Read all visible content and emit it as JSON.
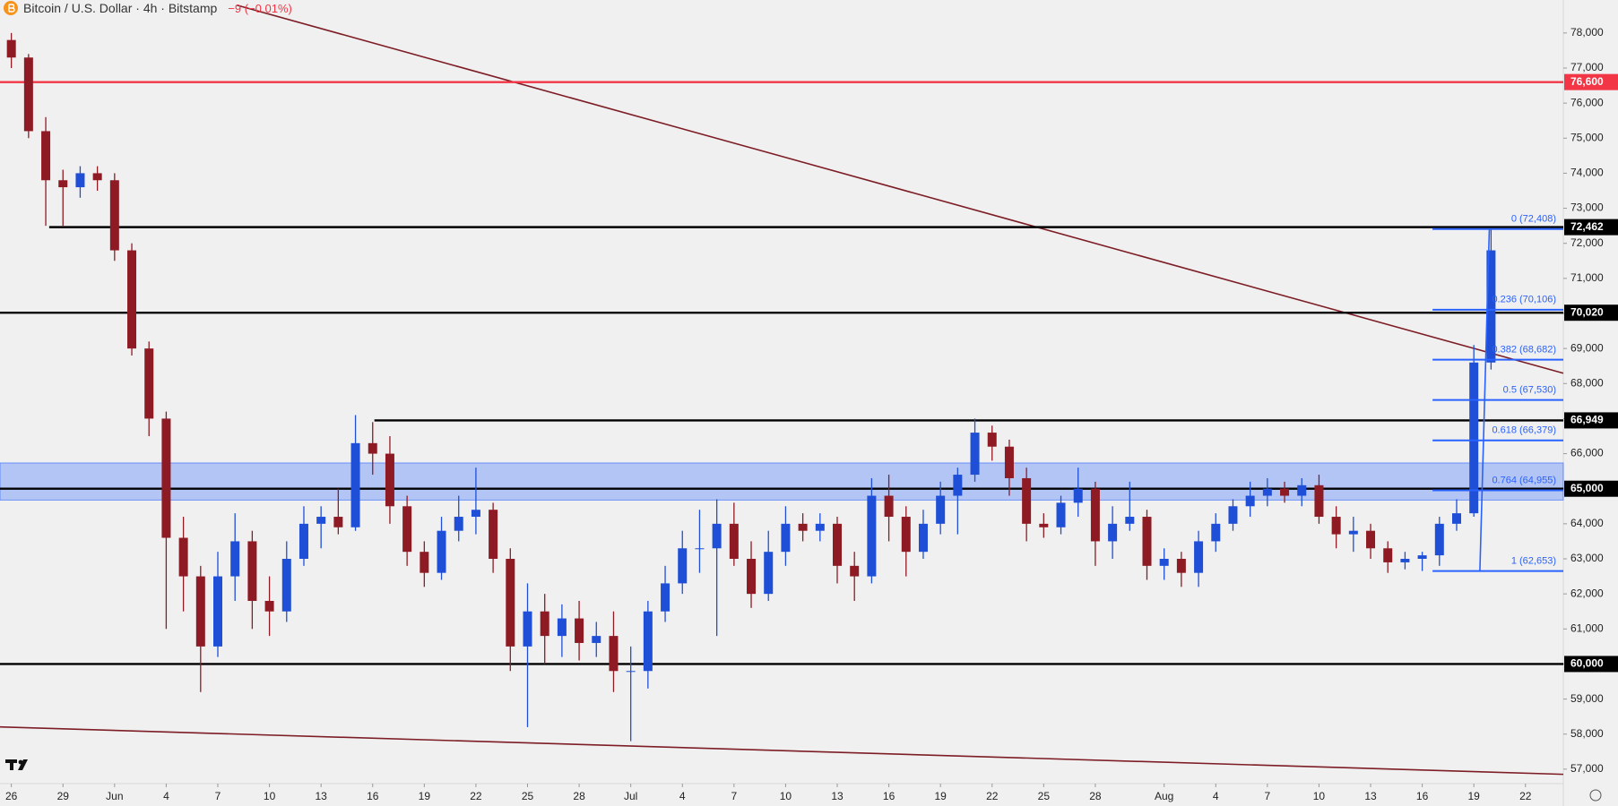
{
  "chart_data": {
    "type": "candlestick",
    "title": "Bitcoin / U.S. Dollar · 4h · Bitstamp",
    "change": "−9 (−0.01%)",
    "up_color": "#1f4fd6",
    "down_color": "#8e1b24",
    "xlim": [
      -0.66,
      90.2
    ],
    "ylim": [
      56588,
      78941
    ],
    "xticks": [
      {
        "value": 0,
        "label": "26"
      },
      {
        "value": 3,
        "label": "29"
      },
      {
        "value": 6,
        "label": "Jun"
      },
      {
        "value": 9,
        "label": "4"
      },
      {
        "value": 12,
        "label": "7"
      },
      {
        "value": 15,
        "label": "10"
      },
      {
        "value": 18,
        "label": "13"
      },
      {
        "value": 21,
        "label": "16"
      },
      {
        "value": 24,
        "label": "19"
      },
      {
        "value": 27,
        "label": "22"
      },
      {
        "value": 30,
        "label": "25"
      },
      {
        "value": 33,
        "label": "28"
      },
      {
        "value": 36,
        "label": "Jul"
      },
      {
        "value": 39,
        "label": "4"
      },
      {
        "value": 42,
        "label": "7"
      },
      {
        "value": 45,
        "label": "10"
      },
      {
        "value": 48,
        "label": "13"
      },
      {
        "value": 51,
        "label": "16"
      },
      {
        "value": 54,
        "label": "19"
      },
      {
        "value": 57,
        "label": "22"
      },
      {
        "value": 60,
        "label": "25"
      },
      {
        "value": 63,
        "label": "28"
      },
      {
        "value": 67,
        "label": "Aug"
      },
      {
        "value": 70,
        "label": "4"
      },
      {
        "value": 73,
        "label": "7"
      },
      {
        "value": 76,
        "label": "10"
      },
      {
        "value": 79,
        "label": "13"
      },
      {
        "value": 82,
        "label": "16"
      },
      {
        "value": 85,
        "label": "19"
      },
      {
        "value": 88,
        "label": "22"
      }
    ],
    "yticks": [
      {
        "value": 57000,
        "label": "57,000"
      },
      {
        "value": 58000,
        "label": "58,000"
      },
      {
        "value": 59000,
        "label": "59,000"
      },
      {
        "value": 60000,
        "label": "60,000"
      },
      {
        "value": 61000,
        "label": "61,000"
      },
      {
        "value": 62000,
        "label": "62,000"
      },
      {
        "value": 63000,
        "label": "63,000"
      },
      {
        "value": 64000,
        "label": "64,000"
      },
      {
        "value": 65000,
        "label": "65,000"
      },
      {
        "value": 66000,
        "label": "66,000"
      },
      {
        "value": 67000,
        "label": "67,000"
      },
      {
        "value": 68000,
        "label": "68,000"
      },
      {
        "value": 69000,
        "label": "69,000"
      },
      {
        "value": 70000,
        "label": "70,000"
      },
      {
        "value": 71000,
        "label": "71,000"
      },
      {
        "value": 72000,
        "label": "72,000"
      },
      {
        "value": 73000,
        "label": "73,000"
      },
      {
        "value": 74000,
        "label": "74,000"
      },
      {
        "value": 75000,
        "label": "75,000"
      },
      {
        "value": 76000,
        "label": "76,000"
      },
      {
        "value": 77000,
        "label": "77,000"
      },
      {
        "value": 78000,
        "label": "78,000"
      }
    ],
    "x": [
      0,
      1,
      2,
      3,
      4,
      5,
      6,
      7,
      8,
      9,
      10,
      11,
      12,
      13,
      14,
      15,
      16,
      17,
      18,
      19,
      20,
      21,
      22,
      23,
      24,
      25,
      26,
      27,
      28,
      29,
      30,
      31,
      32,
      33,
      34,
      35,
      36,
      37,
      38,
      39,
      40,
      41,
      42,
      43,
      44,
      45,
      46,
      47,
      48,
      49,
      50,
      51,
      52,
      53,
      54,
      55,
      56,
      57,
      58,
      59,
      60,
      61,
      62,
      63,
      64,
      65,
      66,
      67,
      68,
      69,
      70,
      71,
      72,
      73,
      74,
      75,
      76,
      77,
      78,
      79,
      80,
      81,
      82,
      83,
      84,
      85,
      86
    ],
    "open": [
      77800,
      77300,
      75200,
      73800,
      73600,
      74000,
      73800,
      71800,
      69000,
      67000,
      63600,
      62500,
      60500,
      62500,
      63500,
      61800,
      61500,
      63000,
      64000,
      64200,
      63900,
      66300,
      66000,
      64500,
      63200,
      62600,
      63800,
      64200,
      64400,
      63000,
      60500,
      61500,
      60800,
      61300,
      60600,
      60800,
      59800,
      59800,
      61500,
      62300,
      63300,
      63300,
      64000,
      63000,
      62000,
      63200,
      64000,
      63800,
      64000,
      62800,
      62500,
      64800,
      64200,
      63200,
      64000,
      64800,
      65400,
      66600,
      66200,
      65300,
      64000,
      63900,
      64600,
      65000,
      63500,
      64000,
      64200,
      62800,
      63000,
      62600,
      63500,
      64000,
      64500,
      64800,
      65000,
      64800,
      65100,
      64200,
      63700,
      63800,
      63300,
      62900,
      63000,
      63100,
      64000,
      64300,
      68600
    ],
    "high": [
      78000,
      77400,
      75600,
      74100,
      74200,
      74200,
      74000,
      72000,
      69200,
      67200,
      64200,
      62800,
      63200,
      64300,
      63800,
      62500,
      63500,
      64500,
      64500,
      65000,
      67100,
      66900,
      66500,
      64800,
      63500,
      64200,
      64800,
      65600,
      64600,
      63300,
      62300,
      62000,
      61700,
      61800,
      61200,
      61500,
      60500,
      61800,
      62800,
      63800,
      64400,
      64700,
      64600,
      63500,
      63800,
      64500,
      64300,
      64300,
      64200,
      63200,
      65300,
      65400,
      64500,
      64400,
      65200,
      65600,
      67000,
      66800,
      66400,
      65600,
      64300,
      64800,
      65600,
      65200,
      64500,
      65200,
      64400,
      63300,
      63200,
      63800,
      64300,
      64700,
      65200,
      65300,
      65200,
      65300,
      65400,
      64500,
      64200,
      64000,
      63500,
      63200,
      63200,
      64200,
      64700,
      69100,
      72408
    ],
    "low": [
      77000,
      75000,
      72500,
      72500,
      73300,
      73500,
      71500,
      68800,
      66500,
      61000,
      61500,
      59200,
      60200,
      61800,
      61000,
      60800,
      61200,
      62800,
      63300,
      63700,
      63800,
      65400,
      64000,
      62800,
      62200,
      62400,
      63500,
      63700,
      62600,
      59800,
      58200,
      60000,
      60200,
      60100,
      60200,
      59200,
      57800,
      59300,
      61200,
      62000,
      62600,
      60800,
      62800,
      61600,
      61800,
      62800,
      63500,
      63500,
      62300,
      61800,
      62300,
      63500,
      62500,
      63000,
      63700,
      63700,
      65200,
      65800,
      64800,
      63500,
      63600,
      63700,
      64200,
      62800,
      63000,
      63800,
      62400,
      62400,
      62200,
      62200,
      63200,
      63800,
      64200,
      64500,
      64600,
      64500,
      64000,
      63300,
      63200,
      63000,
      62600,
      62700,
      62653,
      62800,
      63800,
      64200,
      68400
    ],
    "close": [
      77300,
      75200,
      73800,
      73600,
      74000,
      73800,
      71800,
      69000,
      67000,
      63600,
      62500,
      60500,
      62500,
      63500,
      61800,
      61500,
      63000,
      64000,
      64200,
      63900,
      66300,
      66000,
      64500,
      63200,
      62600,
      63800,
      64200,
      64400,
      63000,
      60500,
      61500,
      60800,
      61300,
      60600,
      60800,
      59800,
      59800,
      61500,
      62300,
      63300,
      63300,
      64000,
      63000,
      62000,
      63200,
      64000,
      63800,
      64000,
      62800,
      62500,
      64800,
      64200,
      63200,
      64000,
      64800,
      65400,
      66600,
      66200,
      65300,
      64000,
      63900,
      64600,
      65000,
      63500,
      64000,
      64200,
      62800,
      63000,
      62600,
      63500,
      64000,
      64500,
      64800,
      65000,
      64800,
      65100,
      64200,
      63700,
      63800,
      63300,
      62900,
      63000,
      63100,
      64000,
      64300,
      68600,
      71800
    ],
    "zone": {
      "from": 64676,
      "to": 65735,
      "color": "#2962ff"
    },
    "levels": [
      {
        "value": 76600,
        "label": "76,600",
        "color": "#f23645",
        "x_start": -0.66
      },
      {
        "value": 72462,
        "label": "72,462",
        "color": "#000000",
        "x_start": 2.2
      },
      {
        "value": 70020,
        "label": "70,020",
        "color": "#000000",
        "x_start": -0.66
      },
      {
        "value": 66949,
        "label": "66,949",
        "color": "#000000",
        "x_start": 21.1
      },
      {
        "value": 65000,
        "label": "65,000",
        "color": "#000000",
        "x_start": -0.66
      },
      {
        "value": 60000,
        "label": "60,000",
        "color": "#000000",
        "x_start": -0.66
      }
    ],
    "trendlines": [
      {
        "x": [
          13.1,
          90.2
        ],
        "values": [
          78794,
          68294
        ],
        "color": "#7d1d25"
      },
      {
        "x": [
          -0.66,
          90.2
        ],
        "values": [
          58206,
          56853
        ],
        "color": "#7d1d25"
      }
    ],
    "fib": {
      "x": [
        82.6,
        90.2
      ],
      "trend_x": [
        85.35,
        85.9
      ],
      "color": "#2962ff",
      "levels": [
        {
          "value": 72408,
          "label": "0 (72,408)"
        },
        {
          "value": 70106,
          "label": "0.236 (70,106)"
        },
        {
          "value": 68682,
          "label": "0.382 (68,682)"
        },
        {
          "value": 67530,
          "label": "0.5 (67,530)"
        },
        {
          "value": 66379,
          "label": "0.618 (66,379)"
        },
        {
          "value": 64955,
          "label": "0.764 (64,955)"
        },
        {
          "value": 62653,
          "label": "1 (62,653)"
        }
      ]
    }
  }
}
